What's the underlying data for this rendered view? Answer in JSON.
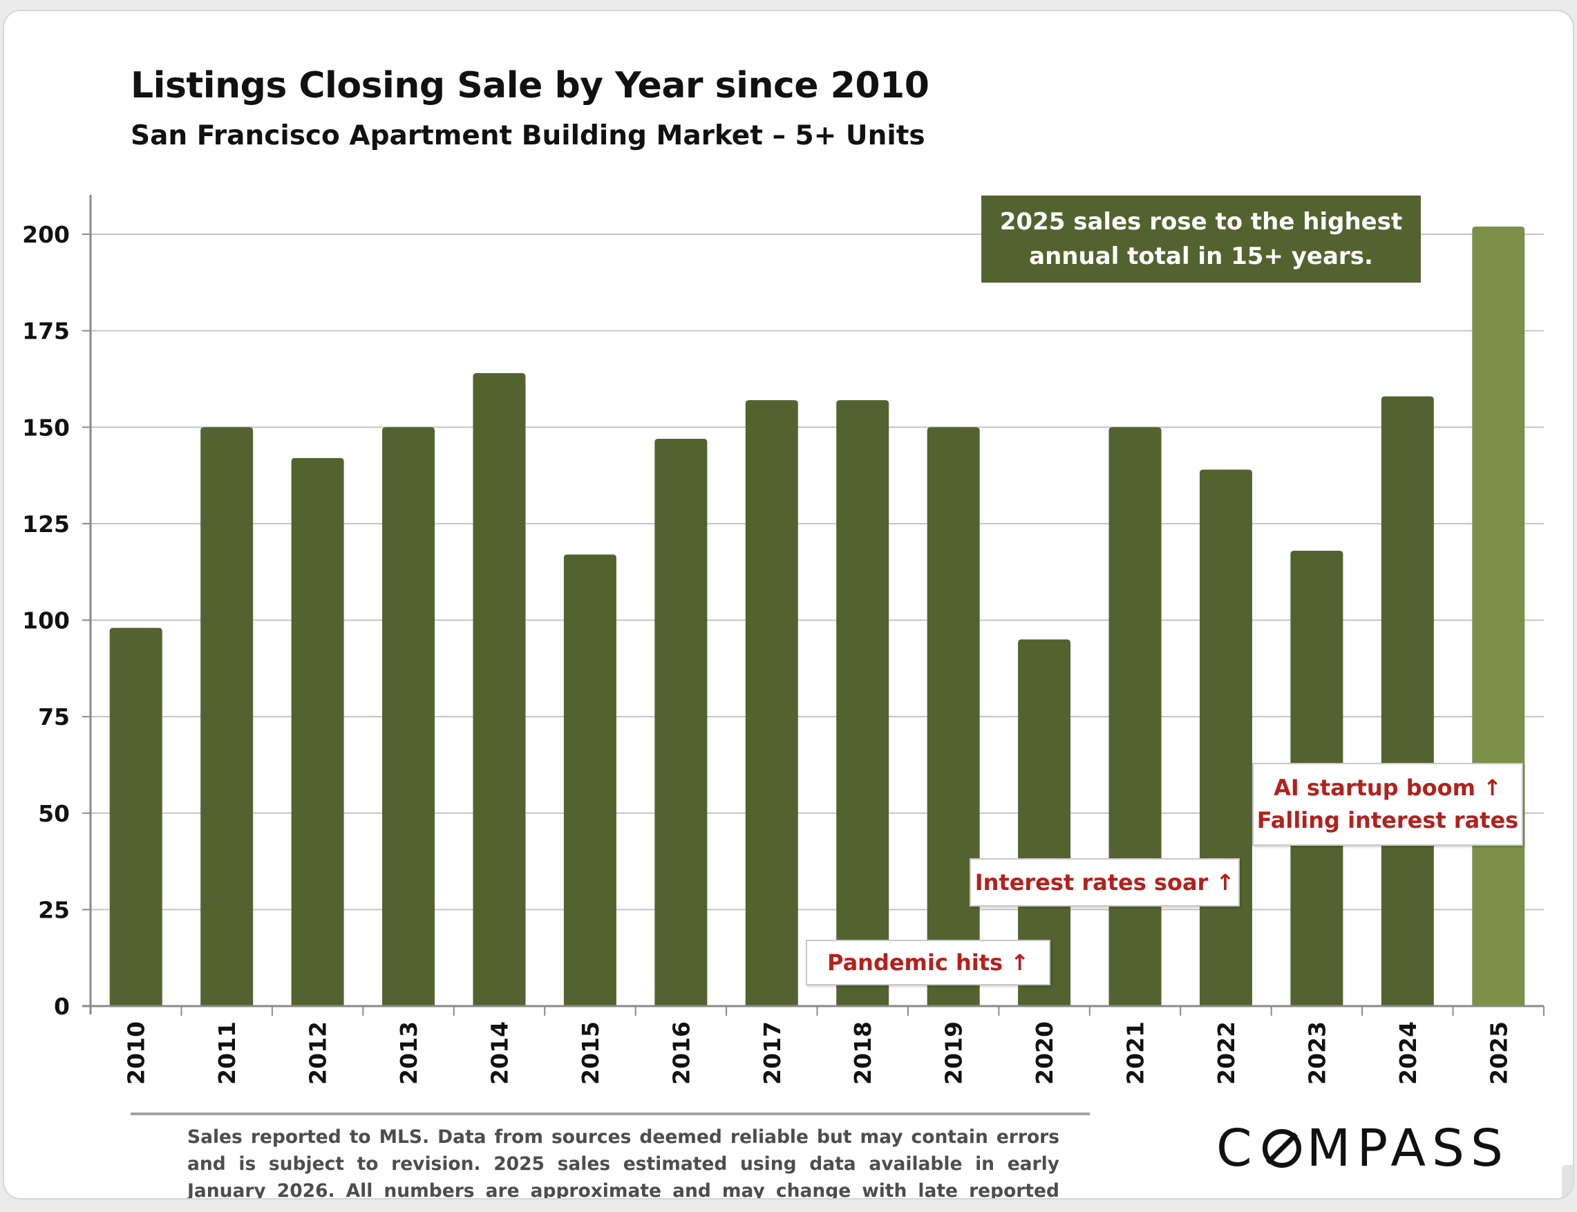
{
  "chart_data": {
    "type": "bar",
    "title": "Listings Closing Sale by Year since 2010",
    "subtitle": "San Francisco Apartment Building Market – 5+ Units",
    "categories": [
      "2010",
      "2011",
      "2012",
      "2013",
      "2014",
      "2015",
      "2016",
      "2017",
      "2018",
      "2019",
      "2020",
      "2021",
      "2022",
      "2023",
      "2024",
      "2025"
    ],
    "values": [
      98,
      150,
      142,
      150,
      164,
      117,
      147,
      157,
      157,
      150,
      95,
      150,
      139,
      118,
      158,
      202
    ],
    "highlight_category": "2025",
    "ylim": [
      0,
      210
    ],
    "yticks": [
      0,
      25,
      50,
      75,
      100,
      125,
      150,
      175,
      200
    ],
    "xlabel": "",
    "ylabel": "",
    "grid": true,
    "colors": {
      "bar": "#536330",
      "highlight": "#7b9147",
      "grid": "#c4c4c4",
      "axis": "#8a8a8a"
    }
  },
  "callout": {
    "line1": "2025 sales rose to the highest",
    "line2": "annual total in 15+ years."
  },
  "annotations": {
    "pandemic": "Pandemic hits ↑",
    "rates": "Interest rates soar ↑",
    "ai_line1": "AI startup boom ↑",
    "ai_line2": "Falling interest rates"
  },
  "footnote": "Sales reported to MLS. Data from sources deemed reliable but may contain errors and is subject to revision. 2025 sales estimated using data available in early January 2026. All numbers are approximate and may change with late reported sales.",
  "logo": {
    "prefix": "C",
    "suffix": "MPASS"
  }
}
